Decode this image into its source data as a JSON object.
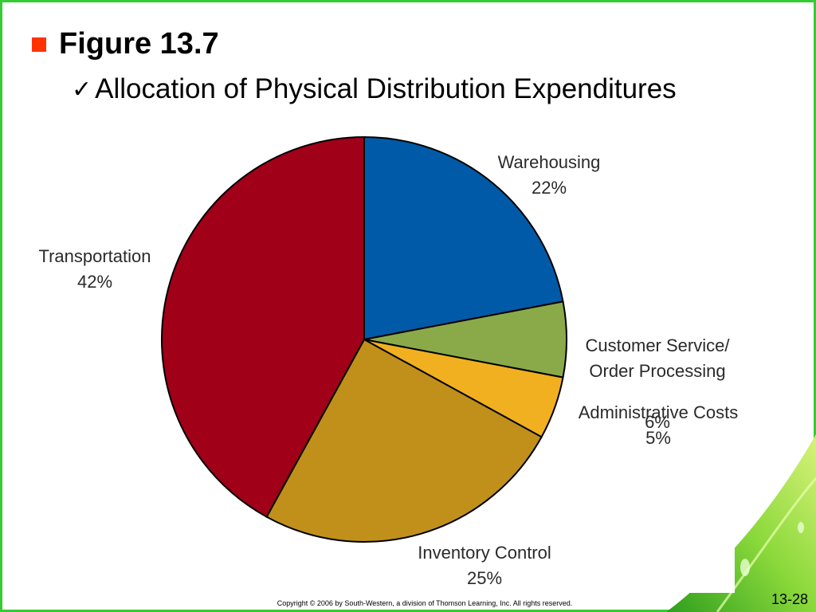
{
  "slide": {
    "bullet_color": "#ff3300",
    "title": "Figure 13.7",
    "check_glyph": "✓",
    "subtitle": "Allocation of Physical Distribution Expenditures",
    "copyright": "Copyright © 2006 by South-Western, a division of Thomson Learning, Inc. All rights reserved.",
    "page_number": "13-28",
    "frame_color": "#33cc33"
  },
  "chart_data": {
    "type": "pie",
    "title": "",
    "slices": [
      {
        "label": "Warehousing",
        "value": 22,
        "value_label": "22%",
        "color": "#005aa8"
      },
      {
        "label": "Customer Service/\nOrder Processing",
        "value": 6,
        "value_label": "6%",
        "color": "#8aaa4a"
      },
      {
        "label": "Administrative Costs",
        "value": 5,
        "value_label": "5%",
        "color": "#f0b020"
      },
      {
        "label": "Inventory Control",
        "value": 25,
        "value_label": "25%",
        "color": "#c0901a"
      },
      {
        "label": "Transportation",
        "value": 42,
        "value_label": "42%",
        "color": "#a00018"
      }
    ],
    "start_angle": "12 o'clock",
    "direction": "clockwise",
    "legend": "none"
  }
}
